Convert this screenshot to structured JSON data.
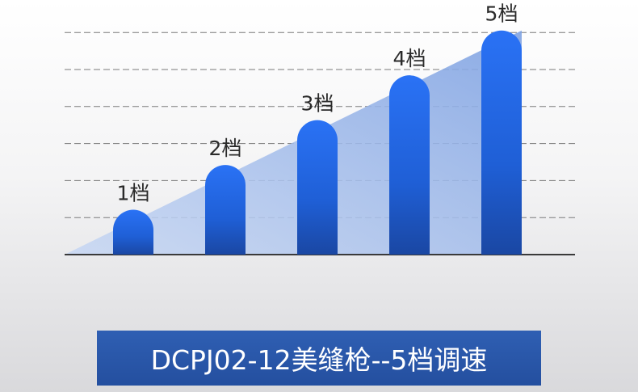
{
  "chart_data": {
    "type": "bar",
    "categories": [
      "1档",
      "2档",
      "3档",
      "4档",
      "5档"
    ],
    "values": [
      1,
      2,
      3,
      4,
      5
    ],
    "title": "DCPJ02-12美缝枪--5档调速",
    "xlabel": "",
    "ylabel": "",
    "ylim": [
      0,
      5.5
    ],
    "grid": true,
    "bar_color": "#1f63e6",
    "bar_dark_color": "#1847a8",
    "trend_fill_color": "#8fb0e8"
  }
}
